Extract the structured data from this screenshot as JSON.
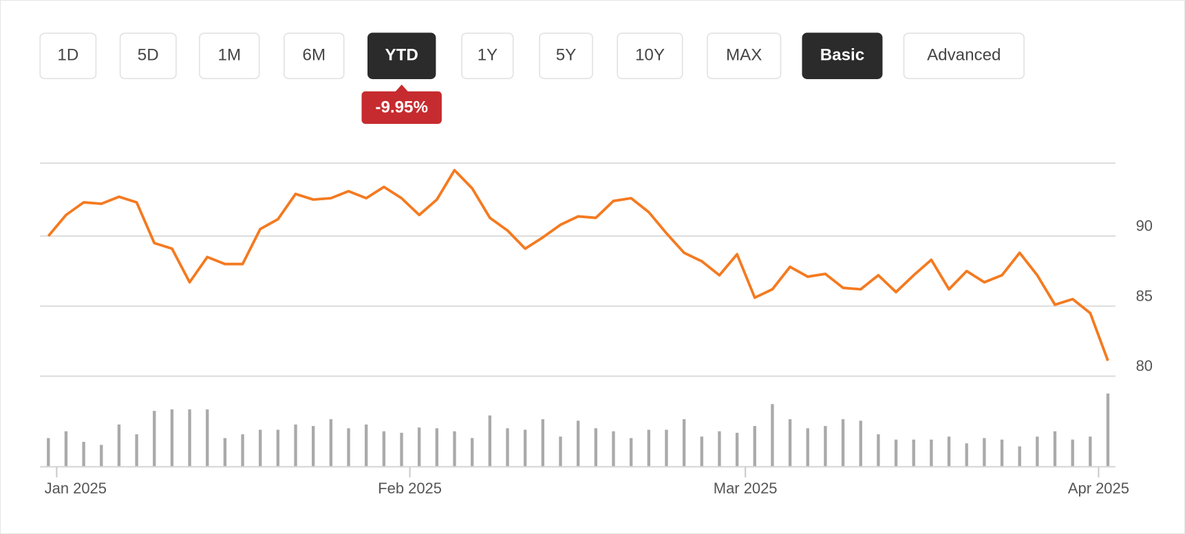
{
  "controls": {
    "ranges": [
      "1D",
      "5D",
      "1M",
      "6M",
      "YTD",
      "1Y",
      "5Y",
      "10Y",
      "MAX"
    ],
    "selected_range": 4,
    "views": [
      "Basic",
      "Advanced"
    ],
    "selected_view": 0
  },
  "change_badge": {
    "text": "-9.95%",
    "color": "#c62b2f"
  },
  "chart_data": {
    "type": "line",
    "categories": [
      "Jan 2025",
      null,
      null,
      null,
      null,
      null,
      null,
      null,
      null,
      null,
      null,
      null,
      null,
      null,
      null,
      null,
      null,
      null,
      null,
      null,
      "Feb 2025",
      null,
      null,
      null,
      null,
      null,
      null,
      null,
      null,
      null,
      null,
      null,
      null,
      null,
      null,
      null,
      null,
      null,
      null,
      "Mar 2025",
      null,
      null,
      null,
      null,
      null,
      null,
      null,
      null,
      null,
      null,
      null,
      null,
      null,
      null,
      null,
      null,
      null,
      null,
      null,
      "Apr 2025",
      null
    ],
    "series": [
      {
        "color": "#f47a20",
        "values": [
          90.0,
          91.5,
          92.4,
          92.3,
          92.8,
          92.4,
          89.5,
          89.1,
          86.7,
          88.5,
          88.0,
          88.0,
          90.5,
          91.2,
          93.0,
          92.6,
          92.7,
          93.2,
          92.7,
          93.5,
          92.7,
          91.5,
          92.6,
          94.7,
          93.4,
          91.3,
          90.4,
          89.1,
          89.9,
          90.8,
          91.4,
          91.3,
          92.5,
          92.7,
          91.7,
          90.2,
          88.8,
          88.2,
          87.2,
          88.7,
          85.6,
          86.2,
          87.8,
          87.1,
          87.3,
          86.3,
          86.2,
          87.2,
          86.0,
          87.2,
          88.3,
          86.2,
          87.5,
          86.7,
          87.2,
          88.8,
          87.2,
          85.1,
          85.5,
          84.5,
          81.1
        ]
      }
    ],
    "volume": {
      "color": "#aaaaaa",
      "values": [
        38,
        47,
        33,
        29,
        56,
        43,
        74,
        76,
        76,
        76,
        38,
        43,
        49,
        49,
        56,
        54,
        63,
        51,
        56,
        47,
        45,
        52,
        51,
        47,
        38,
        68,
        51,
        49,
        63,
        40,
        61,
        51,
        47,
        38,
        49,
        49,
        63,
        40,
        47,
        45,
        54,
        83,
        63,
        51,
        54,
        63,
        61,
        43,
        36,
        36,
        36,
        40,
        31,
        38,
        36,
        27,
        40,
        47,
        36,
        40,
        97
      ]
    },
    "ylim": [
      80,
      95.2
    ],
    "yticks": [
      80,
      85,
      90
    ],
    "grid": true
  }
}
